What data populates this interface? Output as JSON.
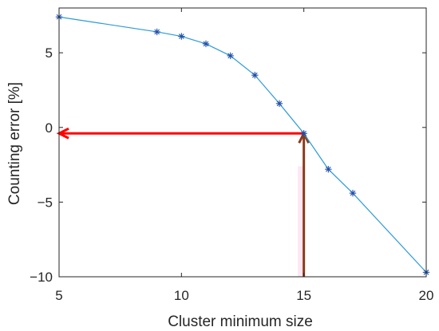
{
  "chart_data": {
    "type": "line",
    "xlabel": "Cluster minimum size",
    "ylabel": "Counting error [%]",
    "xlim": [
      5,
      20
    ],
    "ylim": [
      -10,
      8
    ],
    "x_ticks": [
      5,
      10,
      15,
      20
    ],
    "y_ticks": [
      5,
      0,
      -5,
      -10
    ],
    "y_tick_labels": [
      "5",
      "0",
      "−5",
      "−10"
    ],
    "grid": false,
    "legend": "none",
    "marker": "asterisk",
    "series": [
      {
        "x": [
          5,
          9,
          10,
          11,
          12,
          13,
          14,
          15,
          16,
          17,
          20
        ],
        "y": [
          7.4,
          6.4,
          6.1,
          5.6,
          4.8,
          3.5,
          1.6,
          -0.4,
          -2.8,
          -4.4,
          -9.7
        ]
      }
    ],
    "annotations": [
      {
        "type": "arrow",
        "from": [
          15,
          -10
        ],
        "to": [
          15,
          -0.4
        ],
        "color": "#8b3a1a"
      },
      {
        "type": "arrow",
        "from": [
          15,
          -0.4
        ],
        "to": [
          5,
          -0.4
        ],
        "color": "#ff0000"
      },
      {
        "type": "shaded-band",
        "x": [
          14.85,
          15.0
        ],
        "y": [
          -10,
          -2.6
        ],
        "color": "#ffe6f2"
      }
    ],
    "colors": {
      "series": "#2b9bd6",
      "marker": "#1f4fa8",
      "axis": "#262626",
      "arrow_vertical": "#8b3a1a",
      "arrow_horizontal": "#ff0000",
      "band": "#ffe6f2"
    }
  }
}
